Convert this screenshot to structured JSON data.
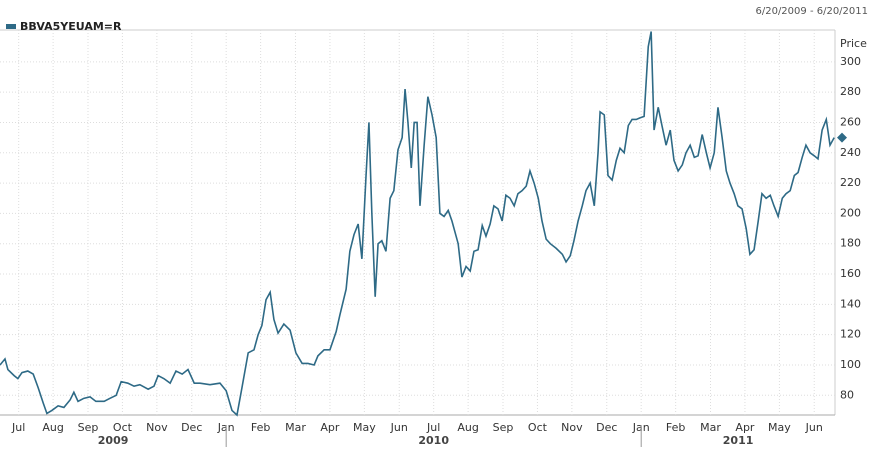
{
  "chart_data": {
    "type": "line",
    "date_range": "6/20/2009 - 6/20/2011",
    "y_axis_label": "Price",
    "x": [
      2009.455,
      2009.467,
      2009.474,
      2009.489,
      2009.498,
      2009.508,
      2009.522,
      2009.535,
      2009.547,
      2009.559,
      2009.568,
      2009.58,
      2009.595,
      2009.609,
      2009.624,
      2009.633,
      2009.643,
      2009.657,
      2009.672,
      2009.686,
      2009.706,
      2009.72,
      2009.735,
      2009.747,
      2009.763,
      2009.778,
      2009.792,
      2009.812,
      2009.826,
      2009.836,
      2009.85,
      2009.865,
      2009.879,
      2009.894,
      2009.908,
      2009.923,
      2009.937,
      2009.961,
      2009.985,
      2010.0,
      2010.014,
      2010.026,
      2010.038,
      2010.053,
      2010.067,
      2010.077,
      2010.086,
      2010.096,
      2010.106,
      2010.115,
      2010.125,
      2010.139,
      2010.154,
      2010.168,
      2010.183,
      2010.197,
      2010.212,
      2010.221,
      2010.236,
      2010.25,
      2010.265,
      2010.274,
      2010.289,
      2010.298,
      2010.308,
      2010.318,
      2010.327,
      2010.337,
      2010.344,
      2010.351,
      2010.359,
      2010.366,
      2010.375,
      2010.385,
      2010.395,
      2010.404,
      2010.414,
      2010.424,
      2010.431,
      2010.438,
      2010.446,
      2010.453,
      2010.46,
      2010.467,
      2010.477,
      2010.486,
      2010.496,
      2010.506,
      2010.515,
      2010.525,
      2010.535,
      2010.544,
      2010.559,
      2010.568,
      2010.578,
      2010.588,
      2010.597,
      2010.607,
      2010.617,
      2010.626,
      2010.636,
      2010.645,
      2010.655,
      2010.665,
      2010.674,
      2010.684,
      2010.694,
      2010.703,
      2010.713,
      2010.723,
      2010.732,
      2010.742,
      2010.752,
      2010.761,
      2010.771,
      2010.781,
      2010.795,
      2010.81,
      2010.819,
      2010.829,
      2010.838,
      2010.848,
      2010.858,
      2010.867,
      2010.877,
      2010.887,
      2010.896,
      2010.901,
      2010.911,
      2010.92,
      2010.93,
      2010.94,
      2010.949,
      2010.959,
      2010.969,
      2010.978,
      2010.988,
      2010.997,
      2011.007,
      2011.017,
      2011.024,
      2011.031,
      2011.041,
      2011.05,
      2011.06,
      2011.07,
      2011.079,
      2011.089,
      2011.099,
      2011.108,
      2011.118,
      2011.128,
      2011.137,
      2011.147,
      2011.157,
      2011.166,
      2011.176,
      2011.185,
      2011.195,
      2011.205,
      2011.214,
      2011.224,
      2011.233,
      2011.243,
      2011.253,
      2011.262,
      2011.272,
      2011.282,
      2011.291,
      2011.301,
      2011.311,
      2011.32,
      2011.33,
      2011.34,
      2011.349,
      2011.359,
      2011.369,
      2011.378,
      2011.388,
      2011.397,
      2011.407,
      2011.417,
      2011.426,
      2011.436,
      2011.446,
      2011.455,
      2011.465
    ],
    "series": [
      {
        "name": "BBVA5YEUAM=R",
        "color": "#2e6a86",
        "values": [
          100,
          104,
          97,
          93,
          91,
          95,
          96,
          94,
          85,
          75,
          68,
          70,
          73,
          72,
          77,
          82,
          76,
          78,
          79,
          76,
          76,
          78,
          80,
          89,
          88,
          86,
          87,
          84,
          86,
          93,
          91,
          88,
          96,
          94,
          97,
          88,
          88,
          87,
          88,
          83,
          70,
          67,
          85,
          108,
          110,
          120,
          126,
          143,
          148,
          130,
          121,
          127,
          123,
          108,
          101,
          101,
          100,
          106,
          110,
          110,
          122,
          133,
          150,
          175,
          186,
          193,
          170,
          225,
          260,
          200,
          145,
          180,
          182,
          175,
          210,
          215,
          242,
          250,
          282,
          260,
          230,
          260,
          260,
          205,
          245,
          277,
          265,
          250,
          200,
          198,
          202,
          195,
          180,
          158,
          165,
          162,
          175,
          176,
          192,
          185,
          193,
          205,
          203,
          195,
          212,
          210,
          205,
          213,
          215,
          218,
          228,
          220,
          210,
          195,
          183,
          180,
          177,
          173,
          168,
          172,
          182,
          195,
          205,
          215,
          220,
          205,
          240,
          267,
          265,
          225,
          222,
          235,
          243,
          240,
          258,
          262,
          262,
          263,
          264,
          310,
          320,
          255,
          270,
          258,
          245,
          255,
          235,
          228,
          232,
          240,
          245,
          237,
          238,
          252,
          240,
          230,
          240,
          270,
          250,
          228,
          220,
          213,
          205,
          203,
          190,
          173,
          176,
          195,
          213,
          210,
          212,
          205,
          198,
          210,
          213,
          215,
          225,
          227,
          237,
          245,
          240,
          238,
          236,
          255,
          262,
          245,
          250
        ]
      }
    ],
    "xlim": [
      2009.455,
      2011.467
    ],
    "xticks": [
      {
        "value": 2009.5,
        "label": "Jul"
      },
      {
        "value": 2009.583,
        "label": "Aug"
      },
      {
        "value": 2009.667,
        "label": "Sep"
      },
      {
        "value": 2009.75,
        "label": "Oct"
      },
      {
        "value": 2009.833,
        "label": "Nov"
      },
      {
        "value": 2009.917,
        "label": "Dec"
      },
      {
        "value": 2010,
        "label": "Jan"
      },
      {
        "value": 2010.083,
        "label": "Feb"
      },
      {
        "value": 2010.167,
        "label": "Mar"
      },
      {
        "value": 2010.25,
        "label": "Apr"
      },
      {
        "value": 2010.333,
        "label": "May"
      },
      {
        "value": 2010.417,
        "label": "Jun"
      },
      {
        "value": 2010.5,
        "label": "Jul"
      },
      {
        "value": 2010.583,
        "label": "Aug"
      },
      {
        "value": 2010.667,
        "label": "Sep"
      },
      {
        "value": 2010.75,
        "label": "Oct"
      },
      {
        "value": 2010.833,
        "label": "Nov"
      },
      {
        "value": 2010.917,
        "label": "Dec"
      },
      {
        "value": 2011,
        "label": "Jan"
      },
      {
        "value": 2011.083,
        "label": "Feb"
      },
      {
        "value": 2011.167,
        "label": "Mar"
      },
      {
        "value": 2011.25,
        "label": "Apr"
      },
      {
        "value": 2011.333,
        "label": "May"
      },
      {
        "value": 2011.417,
        "label": "Jun"
      }
    ],
    "years": [
      "2009",
      "2010",
      "2011"
    ],
    "ylim": [
      67,
      321
    ],
    "yticks": [
      80,
      100,
      120,
      140,
      160,
      180,
      200,
      220,
      240,
      260,
      280,
      300
    ],
    "grid": true
  }
}
